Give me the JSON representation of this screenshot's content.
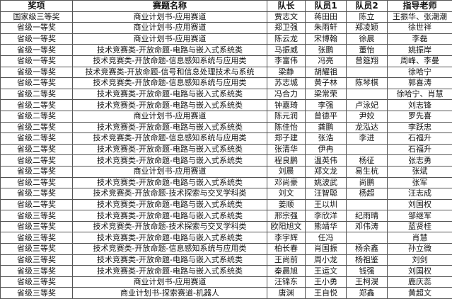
{
  "headers": [
    "奖项",
    "赛题名称",
    "队长",
    "队员1",
    "队员2",
    "指导老师"
  ],
  "rows": [
    [
      "国家级三等奖",
      "商业计划书-应用赛道",
      "贾志文",
      "蒋田田",
      "陈立",
      "王振华、张潮潮"
    ],
    [
      "省级一等奖",
      "商业计划书-应用赛道",
      "郑卫强",
      "朱雨轩",
      "郑凌颖",
      "徐世祥"
    ],
    [
      "省级一等奖",
      "商业计划书-应用赛道",
      "陈云龙",
      "宋博翰",
      "徐晨",
      "李磊"
    ],
    [
      "省级一等奖",
      "技术竞赛类-开放命题-电路与嵌入式系统类",
      "马振威",
      "张鹏",
      "董怡",
      "姚振岸"
    ],
    [
      "省级一等奖",
      "技术竞赛类-开放命题-信息感知系统与应用类",
      "李富伟",
      "冯亮",
      "曾筵翔",
      "周峰、李曼"
    ],
    [
      "省级一等奖",
      "技术竞赛类-开放命题-信号和信息处理技术与系统",
      "梁静",
      "胡耀祖",
      "",
      "徐哈宁"
    ],
    [
      "省级二等奖",
      "技术竞赛类-开放命题-信息感知系统与应用类",
      "苏志城",
      "黄子林",
      "陈琴棋",
      "郭喜涛"
    ],
    [
      "省级二等奖",
      "技术竞赛类-开放命题-电路与嵌入式系统类",
      "冯合力",
      "梁常荣",
      "",
      "徐哈宁、肖慧"
    ],
    [
      "省级二等奖",
      "技术竞赛类-开放命题-电路与嵌入式系统类",
      "钟嘉琦",
      "李强",
      "卢泳妃",
      "刘志锋"
    ],
    [
      "省级二等奖",
      "商业计划书-应用赛道",
      "陈元润",
      "曾德平",
      "尹姣",
      "罗先喜"
    ],
    [
      "省级二等奖",
      "技术竞赛类-开放命题-电路与嵌入式系统类",
      "陈佳怡",
      "龚鹏",
      "龙泓达",
      "李跃忠"
    ],
    [
      "省级二等奖",
      "技术竞赛类-开放命题-信息感知系统与应用类",
      "郑子建",
      "张浩",
      "李进",
      "石福升"
    ],
    [
      "省级二等奖",
      "技术竞赛类-开放命题-电路与嵌入式系统类",
      "张清华",
      "伊冉",
      "",
      "石福升"
    ],
    [
      "省级二等奖",
      "技术竞赛类-开放命题-电路与嵌入式系统类",
      "程良鹏",
      "温英伟",
      "杨征",
      "张志勇"
    ],
    [
      "省级二等奖",
      "商业计划书-应用赛道",
      "刘晨",
      "郑文龙",
      "易生杭",
      "张斌"
    ],
    [
      "省级二等奖",
      "技术竞赛类-开放命题-电路与嵌入式系统类",
      "邓尚豪",
      "姚波武",
      "尚鹏",
      "张军"
    ],
    [
      "省级二等奖",
      "技术竞赛类-开放命题-技术探索与交叉学科类",
      "刘文",
      "汪智聪",
      "杨超",
      "汪志成"
    ],
    [
      "省级二等奖",
      "技术竞赛类-开放命题-电路与嵌入式系统类",
      "姜顺",
      "王以圳",
      "",
      "刘国权"
    ],
    [
      "省级三等奖",
      "技术竞赛类-开放命题-电路与嵌入式系统类",
      "邢宗强",
      "李欣洋",
      "纪雨晴",
      "邹继军"
    ],
    [
      "省级三等奖",
      "技术竞赛类-开放命题-技术探索与交叉学科类",
      "欧阳旭文",
      "熊靖华",
      "邓伟涛",
      "蓝贤桂"
    ],
    [
      "省级三等奖",
      "技术竞赛类-开放命题-电路与嵌入式系统类",
      "李宇辉",
      "任冯",
      "",
      "肖慧"
    ],
    [
      "省级三等奖",
      "技术竞赛类-开放命题-信息感知系统与应用类",
      "柏长春",
      "肖国振",
      "杨余鑫",
      "孙立微"
    ],
    [
      "省级三等奖",
      "技术竞赛类-开放命题-电路与嵌入式系统类",
      "王尚前",
      "周小龙",
      "杨祖鉴",
      "刘剑"
    ],
    [
      "省级三等奖",
      "技术竞赛类-开放命题-电路与嵌入式系统类",
      "秦晨旭",
      "王运文",
      "钱强",
      "刘国权"
    ],
    [
      "省级三等奖",
      "商业计划书-应用赛道",
      "汪锦东",
      "王小勇",
      "王柯淏",
      "鹿庆蕊"
    ],
    [
      "省级三等奖",
      "商业计划书-探索赛道-机器人",
      "唐渊",
      "王自悦",
      "郑鑫",
      "黄超文"
    ]
  ]
}
